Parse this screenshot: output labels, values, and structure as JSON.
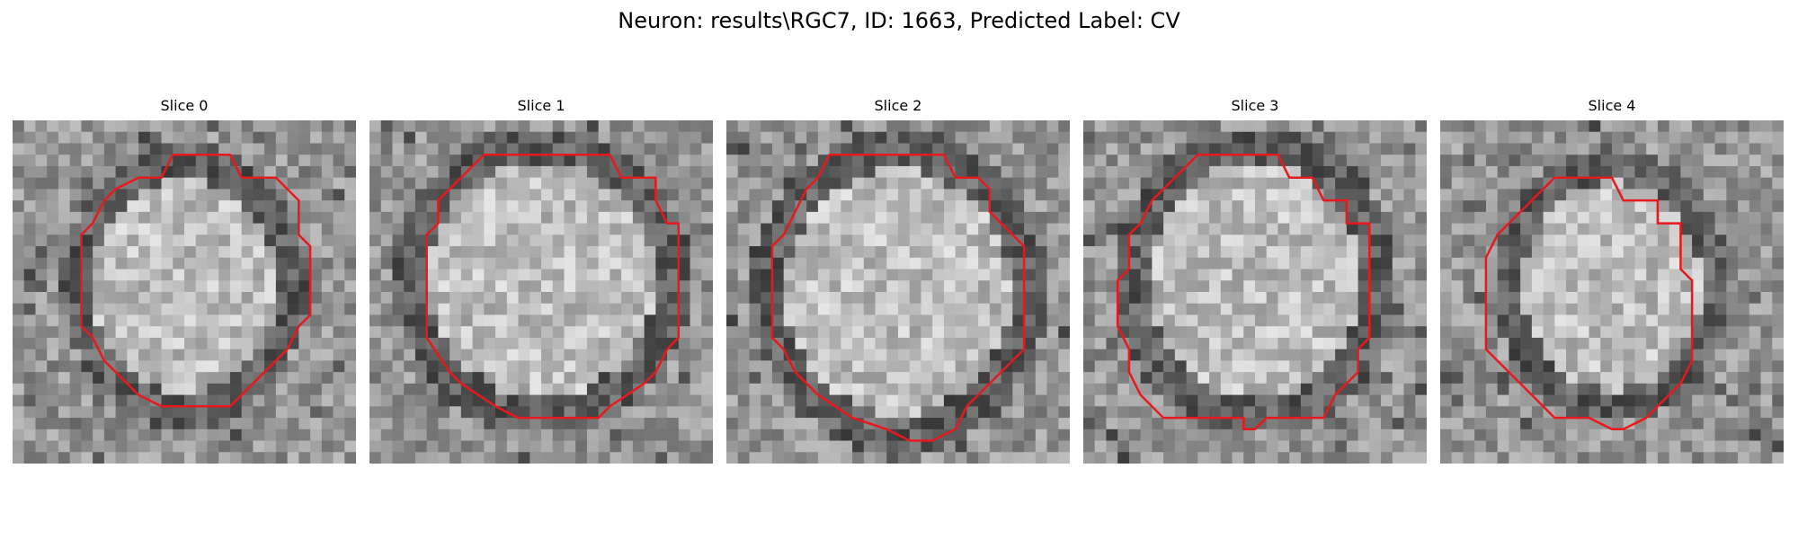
{
  "figure": {
    "title": "Neuron: results\\RGC7, ID: 1663, Predicted Label: CV"
  },
  "panels": [
    {
      "title": "Slice 0"
    },
    {
      "title": "Slice 1"
    },
    {
      "title": "Slice 2"
    },
    {
      "title": "Slice 3"
    },
    {
      "title": "Slice 4"
    }
  ],
  "colors": {
    "contour": "#e8191c",
    "background": "#ffffff"
  }
}
